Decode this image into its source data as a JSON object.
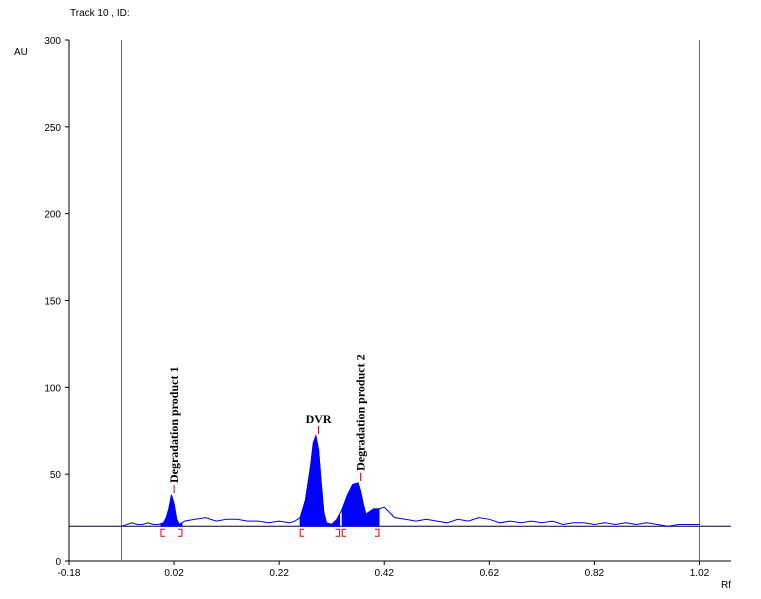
{
  "chart_data": {
    "type": "line",
    "title": "Track  10 , ID:",
    "xlabel": "Rf",
    "ylabel": "AU",
    "xlim": [
      -0.18,
      1.08
    ],
    "ylim": [
      0,
      300
    ],
    "x_ticks": [
      -0.18,
      0.02,
      0.22,
      0.42,
      0.62,
      0.82,
      1.02
    ],
    "x_tick_labels": [
      "-0.18",
      "0.02",
      "0.22",
      "0.42",
      "0.62",
      "0.82",
      "1.02"
    ],
    "y_ticks": [
      0,
      50,
      100,
      150,
      200,
      250,
      300
    ],
    "y_tick_labels": [
      "0",
      "50",
      "100",
      "150",
      "200",
      "250",
      "300"
    ],
    "grid": false,
    "baseline_au": 20,
    "vertical_markers_rf": [
      -0.08,
      1.02
    ],
    "series": [
      {
        "color": "#0000ff",
        "x": [
          -0.08,
          -0.06,
          -0.05,
          -0.04,
          -0.03,
          -0.02,
          -0.01,
          0.0,
          0.005,
          0.01,
          0.015,
          0.02,
          0.025,
          0.03,
          0.04,
          0.06,
          0.08,
          0.1,
          0.12,
          0.14,
          0.16,
          0.18,
          0.2,
          0.22,
          0.24,
          0.25,
          0.26,
          0.27,
          0.28,
          0.285,
          0.29,
          0.295,
          0.3,
          0.305,
          0.31,
          0.32,
          0.33,
          0.34,
          0.35,
          0.36,
          0.37,
          0.375,
          0.38,
          0.385,
          0.39,
          0.4,
          0.41,
          0.42,
          0.44,
          0.46,
          0.48,
          0.5,
          0.52,
          0.54,
          0.56,
          0.58,
          0.6,
          0.62,
          0.64,
          0.66,
          0.68,
          0.7,
          0.72,
          0.74,
          0.76,
          0.78,
          0.8,
          0.82,
          0.84,
          0.86,
          0.88,
          0.9,
          0.92,
          0.94,
          0.96,
          0.98,
          1.0,
          1.02
        ],
        "y": [
          20,
          22,
          21,
          21,
          22,
          21,
          21,
          22,
          25,
          30,
          38,
          33,
          24,
          21,
          23,
          24,
          25,
          23,
          24,
          24,
          23,
          23,
          22,
          23,
          22,
          23,
          25,
          35,
          55,
          68,
          72,
          64,
          45,
          28,
          22,
          21,
          24,
          30,
          38,
          44,
          45,
          40,
          33,
          27,
          28,
          30,
          30,
          31,
          25,
          24,
          23,
          24,
          23,
          22,
          24,
          23,
          25,
          24,
          22,
          23,
          22,
          23,
          22,
          23,
          21,
          22,
          22,
          21,
          22,
          21,
          22,
          21,
          22,
          21,
          20,
          21,
          21,
          21
        ]
      }
    ],
    "peaks": [
      {
        "label": "Degradation product 1",
        "rf": 0.02,
        "au": 38,
        "start_rf": -0.005,
        "end_rf": 0.035
      },
      {
        "label": "DVR",
        "rf": 0.295,
        "au": 72,
        "start_rf": 0.26,
        "end_rf": 0.335
      },
      {
        "label": "Degradation product 2",
        "rf": 0.375,
        "au": 45,
        "start_rf": 0.34,
        "end_rf": 0.41
      }
    ]
  }
}
